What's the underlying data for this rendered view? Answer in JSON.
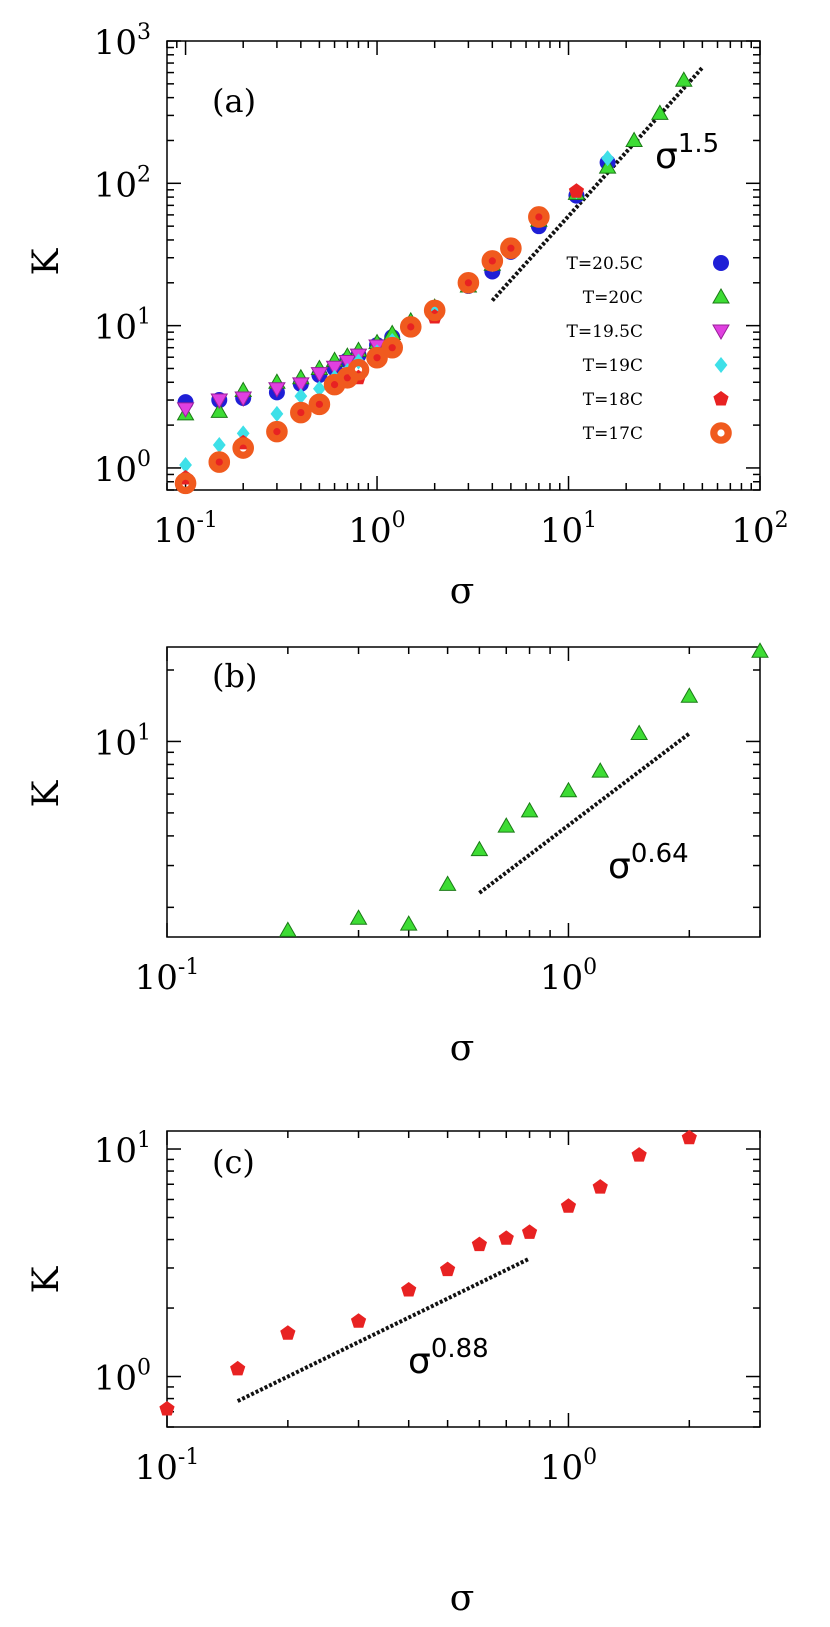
{
  "chart_data": [
    {
      "type": "scatter",
      "panel_label": "(a)",
      "xlabel": "σ",
      "ylabel": "K",
      "xscale": "log",
      "yscale": "log",
      "xlim": [
        0.08,
        100
      ],
      "ylim": [
        0.7,
        1000
      ],
      "xticks": [
        {
          "base": "10",
          "exp": "-1"
        },
        {
          "base": "10",
          "exp": "0"
        },
        {
          "base": "10",
          "exp": "1"
        },
        {
          "base": "10",
          "exp": "2"
        }
      ],
      "yticks": [
        {
          "base": "10",
          "exp": "0"
        },
        {
          "base": "10",
          "exp": "1"
        },
        {
          "base": "10",
          "exp": "2"
        },
        {
          "base": "10",
          "exp": "3"
        }
      ],
      "legend_position": "right",
      "series": [
        {
          "name": "T=20.5C",
          "marker": "circle",
          "color": "#1f1fd6",
          "x": [
            0.1,
            0.15,
            0.2,
            0.3,
            0.4,
            0.5,
            0.6,
            0.7,
            0.8,
            1.0,
            1.2,
            1.5,
            2.0,
            3.0,
            4.0,
            5.0,
            7.0,
            11.0,
            16.0
          ],
          "y": [
            2.9,
            3.0,
            3.1,
            3.4,
            3.9,
            4.5,
            5.0,
            5.7,
            6.2,
            7.3,
            8.3,
            10.0,
            12.0,
            19.0,
            24.0,
            33.0,
            50.0,
            82.0,
            140.0
          ]
        },
        {
          "name": "T=20C",
          "marker": "triangle-up",
          "color": "#3ddc34",
          "x": [
            0.1,
            0.15,
            0.2,
            0.3,
            0.4,
            0.5,
            0.6,
            0.7,
            0.8,
            1.0,
            1.2,
            1.5,
            2.0,
            3.0,
            4.0,
            5.0,
            7.0,
            11.0,
            16.0,
            22.0,
            30.0,
            40.0
          ],
          "y": [
            2.4,
            2.5,
            3.5,
            4.0,
            4.3,
            5.0,
            5.7,
            6.1,
            6.7,
            7.6,
            8.8,
            10.8,
            13.5,
            19.0,
            27.0,
            35.0,
            55.0,
            85.0,
            130.0,
            200.0,
            310.0,
            530.0
          ]
        },
        {
          "name": "T=19.5C",
          "marker": "triangle-down",
          "color": "#e040e0",
          "x": [
            0.1,
            0.15,
            0.2,
            0.3,
            0.4,
            0.5,
            0.6,
            0.7,
            0.8,
            1.0
          ],
          "y": [
            2.6,
            3.0,
            3.1,
            3.6,
            3.9,
            4.6,
            5.1,
            5.6,
            6.2,
            7.2
          ]
        },
        {
          "name": "T=19C",
          "marker": "diamond",
          "color": "#3ee0e8",
          "x": [
            0.1,
            0.15,
            0.2,
            0.3,
            0.4,
            0.5,
            0.6,
            0.7,
            0.8,
            1.0,
            1.2,
            1.5,
            2.0,
            3.0,
            4.0,
            5.0,
            7.0,
            11.0,
            16.0
          ],
          "y": [
            1.05,
            1.45,
            1.75,
            2.4,
            3.2,
            3.6,
            4.3,
            4.8,
            5.6,
            6.5,
            7.8,
            9.8,
            12.5,
            19.0,
            27.0,
            36.0,
            56.0,
            88.0,
            150.0
          ]
        },
        {
          "name": "T=18C",
          "marker": "pentagon",
          "color": "#e82222",
          "x": [
            0.1,
            0.15,
            0.2,
            0.3,
            0.4,
            0.5,
            0.6,
            0.7,
            0.8,
            1.0,
            1.2,
            1.5,
            2.0,
            3.0,
            4.0,
            5.0,
            7.0,
            11.0
          ],
          "y": [
            0.85,
            1.1,
            1.5,
            1.75,
            2.4,
            2.85,
            3.75,
            4.1,
            4.3,
            5.8,
            7.0,
            9.5,
            11.5,
            19.0,
            27.0,
            36.0,
            57.0,
            88.0
          ]
        },
        {
          "name": "T=17C",
          "marker": "ring",
          "color": "#f05a1e",
          "x": [
            0.1,
            0.15,
            0.2,
            0.3,
            0.4,
            0.5,
            0.6,
            0.7,
            0.8,
            1.0,
            1.2,
            1.5,
            2.0,
            3.0,
            4.0,
            5.0,
            7.0
          ],
          "y": [
            0.78,
            1.1,
            1.38,
            1.8,
            2.45,
            2.8,
            3.85,
            4.3,
            4.9,
            5.95,
            7.0,
            9.8,
            12.8,
            20.0,
            28.5,
            35.0,
            58.0
          ]
        }
      ],
      "fit_line": {
        "x": [
          4.0,
          50.0
        ],
        "y": [
          15.0,
          650.0
        ],
        "label_base": "σ",
        "label_exp": "1.5"
      }
    },
    {
      "type": "scatter",
      "panel_label": "(b)",
      "xlabel": "σ",
      "ylabel": "K",
      "xscale": "log",
      "yscale": "log",
      "xlim": [
        0.1,
        3.0
      ],
      "ylim": [
        1.5,
        25
      ],
      "xticks": [
        {
          "base": "10",
          "exp": "-1"
        },
        {
          "base": "10",
          "exp": "0"
        }
      ],
      "yticks": [
        {
          "base": "10",
          "exp": "1"
        }
      ],
      "series": [
        {
          "name": "T=20C",
          "marker": "triangle-up",
          "color": "#3ddc34",
          "x": [
            0.2,
            0.3,
            0.4,
            0.5,
            0.6,
            0.7,
            0.8,
            1.0,
            1.2,
            1.5,
            2.0,
            3.0
          ],
          "y": [
            1.6,
            1.8,
            1.7,
            2.5,
            3.5,
            4.4,
            5.1,
            6.2,
            7.5,
            10.8,
            15.5,
            24.0
          ]
        }
      ],
      "fit_line": {
        "x": [
          0.6,
          2.0
        ],
        "y": [
          2.3,
          10.8
        ],
        "label_base": "σ",
        "label_exp": "0.64"
      }
    },
    {
      "type": "scatter",
      "panel_label": "(c)",
      "xlabel": "σ",
      "ylabel": "K",
      "xscale": "log",
      "yscale": "log",
      "xlim": [
        0.1,
        3.0
      ],
      "ylim": [
        0.6,
        12
      ],
      "xticks": [
        {
          "base": "10",
          "exp": "-1"
        },
        {
          "base": "10",
          "exp": "0"
        }
      ],
      "yticks": [
        {
          "base": "10",
          "exp": "0"
        },
        {
          "base": "10",
          "exp": "1"
        }
      ],
      "series": [
        {
          "name": "T=18C",
          "marker": "pentagon",
          "color": "#e82222",
          "x": [
            0.1,
            0.15,
            0.2,
            0.3,
            0.4,
            0.5,
            0.6,
            0.7,
            0.8,
            1.0,
            1.2,
            1.5,
            2.0
          ],
          "y": [
            0.72,
            1.08,
            1.55,
            1.75,
            2.4,
            2.95,
            3.8,
            4.05,
            4.3,
            5.6,
            6.8,
            9.4,
            11.2
          ]
        }
      ],
      "fit_line": {
        "x": [
          0.15,
          0.8
        ],
        "y": [
          0.78,
          3.3
        ],
        "label_base": "σ",
        "label_exp": "0.88"
      }
    }
  ]
}
